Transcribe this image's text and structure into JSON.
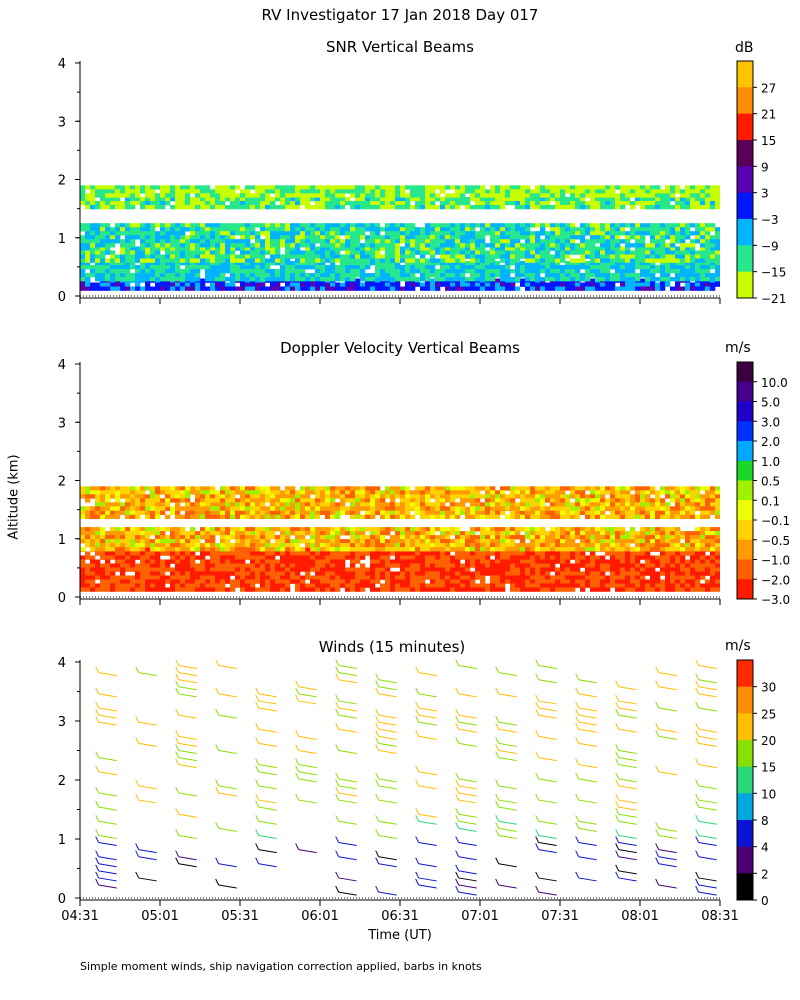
{
  "page": {
    "title": "RV Investigator  17 Jan 2018 Day 017",
    "ylabel": "Altitude (km)",
    "xlabel": "Time (UT)",
    "footnote": "Simple moment winds, ship navigation correction applied, barbs in knots"
  },
  "chart_data": [
    {
      "type": "heatmap",
      "title": "SNR Vertical Beams",
      "unit": "dB",
      "ylabel": "Altitude (km)",
      "yticks": [
        "0",
        "1",
        "2",
        "3",
        "4"
      ],
      "ylim": [
        0,
        4
      ],
      "xlim": [
        "04:31",
        "08:31"
      ],
      "colorbar_labels": [
        "27",
        "21",
        "15",
        "9",
        "3",
        "−3",
        "−9",
        "−15",
        "−21"
      ],
      "colorbar_colors": [
        "#ffc400",
        "#ff8c00",
        "#ff1a00",
        "#5a0057",
        "#5a00b4",
        "#0018ff",
        "#00b4ff",
        "#28e68c",
        "#c8ff00"
      ],
      "layers": [
        {
          "alt": [
            0.15,
            0.3
          ],
          "snr": 0
        },
        {
          "alt": [
            0.3,
            0.6
          ],
          "snr": -9
        },
        {
          "alt": [
            0.6,
            0.85
          ],
          "snr": -12
        },
        {
          "alt": [
            0.85,
            1.25
          ],
          "snr": -11
        },
        {
          "alt": [
            1.5,
            1.7
          ],
          "snr": -14
        },
        {
          "alt": [
            1.7,
            1.9
          ],
          "snr": -16
        }
      ]
    },
    {
      "type": "heatmap",
      "title": "Doppler Velocity Vertical Beams",
      "unit": "m/s",
      "ylabel": "Altitude (km)",
      "yticks": [
        "0",
        "1",
        "2",
        "3",
        "4"
      ],
      "ylim": [
        0,
        4
      ],
      "xlim": [
        "04:31",
        "08:31"
      ],
      "colorbar_labels": [
        "10.0",
        "5.0",
        "3.0",
        "2.0",
        "1.0",
        "0.5",
        "0.1",
        "−0.1",
        "−0.5",
        "−1.0",
        "−2.0",
        "−3.0"
      ],
      "colorbar_colors": [
        "#3a0040",
        "#46008c",
        "#1e00c8",
        "#0032ff",
        "#00a8ff",
        "#19d828",
        "#a0f000",
        "#f0ff00",
        "#ffd200",
        "#ff9a00",
        "#ff6000",
        "#ff1a00"
      ],
      "layers": [
        {
          "alt": [
            0.15,
            0.85
          ],
          "velocity": -2.0
        },
        {
          "alt": [
            0.85,
            1.2
          ],
          "velocity": -0.5
        },
        {
          "alt": [
            1.35,
            1.55
          ],
          "velocity": -0.5
        },
        {
          "alt": [
            1.55,
            1.9
          ],
          "velocity": -0.5
        }
      ]
    },
    {
      "type": "scatter",
      "title": "Winds (15 minutes)",
      "unit": "m/s",
      "ylabel": "Altitude (km)",
      "xlabel": "Time (UT)",
      "yticks": [
        "0",
        "1",
        "2",
        "3",
        "4"
      ],
      "ylim": [
        0,
        4
      ],
      "xticks": [
        "04:31",
        "05:01",
        "05:31",
        "06:01",
        "06:31",
        "07:01",
        "07:31",
        "08:01",
        "08:31"
      ],
      "xlim": [
        "04:31",
        "08:31"
      ],
      "colorbar_labels": [
        "30",
        "25",
        "20",
        "15",
        "10",
        "8",
        "4",
        "2",
        "0"
      ],
      "colorbar_colors": [
        "#ff2a00",
        "#ff8c00",
        "#ffbe00",
        "#88e000",
        "#28d878",
        "#00a8e0",
        "#0a14d2",
        "#4a0070",
        "#000000"
      ]
    }
  ]
}
